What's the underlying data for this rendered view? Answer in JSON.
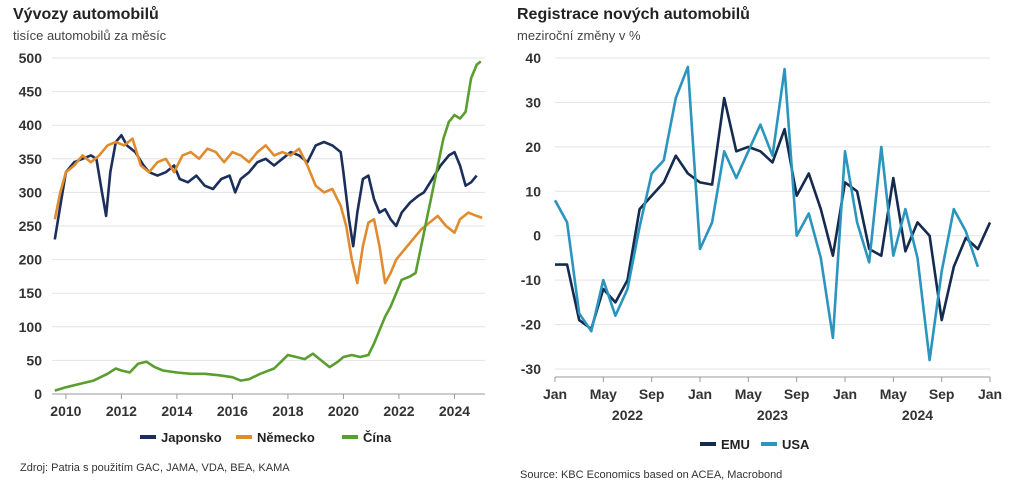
{
  "left": {
    "title": "Vývozy automobilů",
    "subtitle": "tisíce automobilů za měsíc",
    "source": "Zdroj: Patria s použitím GAC, JAMA, VDA, BEA, KAMA"
  },
  "right": {
    "title": "Registrace nových automobilů",
    "subtitle": "meziroční změny v %",
    "source": "Source: KBC Economics based on ACEA, Macrobond"
  },
  "colors": {
    "japonsko": "#1b2f5a",
    "nemecko": "#e08c2e",
    "cina": "#5a9e2f",
    "emu": "#142a4f",
    "usa": "#2b95bd",
    "grid": "#e3e3e3",
    "axis": "#9a9a9a"
  },
  "chart_data": [
    {
      "type": "line",
      "title": "Vývozy automobilů",
      "subtitle": "tisíce automobilů za měsíc",
      "ylim": [
        0,
        500
      ],
      "yticks": [
        0,
        50,
        100,
        150,
        200,
        250,
        300,
        350,
        400,
        450,
        500
      ],
      "xlim": [
        2009.5,
        2025.1
      ],
      "xticks": [
        2010,
        2012,
        2014,
        2016,
        2018,
        2020,
        2022,
        2024
      ],
      "grid": true,
      "legend": "bottom",
      "series": [
        {
          "name": "Japonsko",
          "color_key": "japonsko",
          "points": [
            [
              2009.6,
              230
            ],
            [
              2009.8,
              280
            ],
            [
              2010.0,
              330
            ],
            [
              2010.3,
              345
            ],
            [
              2010.6,
              350
            ],
            [
              2010.9,
              355
            ],
            [
              2011.1,
              350
            ],
            [
              2011.3,
              300
            ],
            [
              2011.45,
              265
            ],
            [
              2011.6,
              330
            ],
            [
              2011.8,
              375
            ],
            [
              2012.0,
              385
            ],
            [
              2012.2,
              370
            ],
            [
              2012.5,
              360
            ],
            [
              2012.8,
              340
            ],
            [
              2013.0,
              330
            ],
            [
              2013.3,
              325
            ],
            [
              2013.6,
              330
            ],
            [
              2013.9,
              340
            ],
            [
              2014.1,
              320
            ],
            [
              2014.4,
              315
            ],
            [
              2014.7,
              325
            ],
            [
              2015.0,
              310
            ],
            [
              2015.3,
              305
            ],
            [
              2015.6,
              320
            ],
            [
              2015.9,
              325
            ],
            [
              2016.1,
              300
            ],
            [
              2016.3,
              320
            ],
            [
              2016.6,
              330
            ],
            [
              2016.9,
              345
            ],
            [
              2017.2,
              350
            ],
            [
              2017.5,
              340
            ],
            [
              2017.8,
              350
            ],
            [
              2018.1,
              360
            ],
            [
              2018.4,
              355
            ],
            [
              2018.7,
              345
            ],
            [
              2019.0,
              370
            ],
            [
              2019.3,
              375
            ],
            [
              2019.6,
              370
            ],
            [
              2019.9,
              360
            ],
            [
              2020.0,
              330
            ],
            [
              2020.2,
              260
            ],
            [
              2020.35,
              220
            ],
            [
              2020.5,
              270
            ],
            [
              2020.7,
              320
            ],
            [
              2020.9,
              325
            ],
            [
              2021.1,
              290
            ],
            [
              2021.3,
              270
            ],
            [
              2021.5,
              275
            ],
            [
              2021.7,
              260
            ],
            [
              2021.9,
              250
            ],
            [
              2022.1,
              270
            ],
            [
              2022.4,
              285
            ],
            [
              2022.7,
              295
            ],
            [
              2022.9,
              300
            ],
            [
              2023.2,
              320
            ],
            [
              2023.5,
              340
            ],
            [
              2023.8,
              355
            ],
            [
              2024.0,
              360
            ],
            [
              2024.2,
              340
            ],
            [
              2024.4,
              310
            ],
            [
              2024.6,
              315
            ],
            [
              2024.8,
              325
            ]
          ]
        },
        {
          "name": "Německo",
          "color_key": "nemecko",
          "points": [
            [
              2009.6,
              260
            ],
            [
              2009.8,
              300
            ],
            [
              2010.0,
              330
            ],
            [
              2010.3,
              340
            ],
            [
              2010.6,
              355
            ],
            [
              2010.9,
              345
            ],
            [
              2011.2,
              355
            ],
            [
              2011.5,
              370
            ],
            [
              2011.8,
              375
            ],
            [
              2012.1,
              370
            ],
            [
              2012.4,
              380
            ],
            [
              2012.7,
              340
            ],
            [
              2013.0,
              330
            ],
            [
              2013.3,
              345
            ],
            [
              2013.6,
              350
            ],
            [
              2013.9,
              330
            ],
            [
              2014.2,
              355
            ],
            [
              2014.5,
              360
            ],
            [
              2014.8,
              350
            ],
            [
              2015.1,
              365
            ],
            [
              2015.4,
              360
            ],
            [
              2015.7,
              345
            ],
            [
              2016.0,
              360
            ],
            [
              2016.3,
              355
            ],
            [
              2016.6,
              345
            ],
            [
              2016.9,
              360
            ],
            [
              2017.2,
              370
            ],
            [
              2017.5,
              355
            ],
            [
              2017.8,
              360
            ],
            [
              2018.1,
              355
            ],
            [
              2018.4,
              365
            ],
            [
              2018.7,
              340
            ],
            [
              2019.0,
              310
            ],
            [
              2019.3,
              300
            ],
            [
              2019.6,
              305
            ],
            [
              2019.9,
              280
            ],
            [
              2020.1,
              250
            ],
            [
              2020.3,
              200
            ],
            [
              2020.5,
              165
            ],
            [
              2020.7,
              220
            ],
            [
              2020.9,
              255
            ],
            [
              2021.1,
              260
            ],
            [
              2021.3,
              220
            ],
            [
              2021.5,
              165
            ],
            [
              2021.7,
              180
            ],
            [
              2021.9,
              200
            ],
            [
              2022.2,
              215
            ],
            [
              2022.5,
              230
            ],
            [
              2022.8,
              245
            ],
            [
              2023.1,
              255
            ],
            [
              2023.4,
              265
            ],
            [
              2023.7,
              250
            ],
            [
              2024.0,
              240
            ],
            [
              2024.2,
              260
            ],
            [
              2024.5,
              270
            ],
            [
              2024.8,
              265
            ],
            [
              2025.0,
              262
            ]
          ]
        },
        {
          "name": "Čína",
          "color_key": "cina",
          "points": [
            [
              2009.6,
              5
            ],
            [
              2010.0,
              10
            ],
            [
              2010.5,
              15
            ],
            [
              2011.0,
              20
            ],
            [
              2011.5,
              30
            ],
            [
              2011.8,
              38
            ],
            [
              2012.0,
              35
            ],
            [
              2012.3,
              32
            ],
            [
              2012.6,
              45
            ],
            [
              2012.9,
              48
            ],
            [
              2013.2,
              40
            ],
            [
              2013.5,
              35
            ],
            [
              2014.0,
              32
            ],
            [
              2014.5,
              30
            ],
            [
              2015.0,
              30
            ],
            [
              2015.5,
              28
            ],
            [
              2016.0,
              25
            ],
            [
              2016.3,
              20
            ],
            [
              2016.6,
              22
            ],
            [
              2017.0,
              30
            ],
            [
              2017.5,
              38
            ],
            [
              2017.8,
              50
            ],
            [
              2018.0,
              58
            ],
            [
              2018.3,
              55
            ],
            [
              2018.6,
              52
            ],
            [
              2018.9,
              60
            ],
            [
              2019.2,
              50
            ],
            [
              2019.5,
              40
            ],
            [
              2019.8,
              48
            ],
            [
              2020.0,
              55
            ],
            [
              2020.3,
              58
            ],
            [
              2020.6,
              55
            ],
            [
              2020.9,
              58
            ],
            [
              2021.1,
              75
            ],
            [
              2021.3,
              95
            ],
            [
              2021.5,
              115
            ],
            [
              2021.7,
              130
            ],
            [
              2021.9,
              150
            ],
            [
              2022.1,
              170
            ],
            [
              2022.4,
              175
            ],
            [
              2022.6,
              180
            ],
            [
              2022.8,
              220
            ],
            [
              2023.0,
              260
            ],
            [
              2023.2,
              300
            ],
            [
              2023.4,
              340
            ],
            [
              2023.6,
              380
            ],
            [
              2023.8,
              405
            ],
            [
              2024.0,
              415
            ],
            [
              2024.2,
              410
            ],
            [
              2024.4,
              420
            ],
            [
              2024.6,
              470
            ],
            [
              2024.8,
              490
            ],
            [
              2024.95,
              495
            ]
          ]
        }
      ]
    },
    {
      "type": "line",
      "title": "Registrace nových automobilů",
      "subtitle": "meziroční změny v %",
      "ylim": [
        -30,
        40
      ],
      "yticks": [
        -30,
        -20,
        -10,
        0,
        10,
        20,
        30,
        40
      ],
      "x_start": "2022-01",
      "months": 37,
      "xtick_labels": [
        "Jan",
        "May",
        "Sep",
        "Jan",
        "May",
        "Sep",
        "Jan",
        "May",
        "Sep",
        "Jan"
      ],
      "xtick_month_index": [
        0,
        4,
        8,
        12,
        16,
        20,
        24,
        28,
        32,
        36
      ],
      "year_labels": [
        {
          "label": "2022",
          "center_index": 6
        },
        {
          "label": "2023",
          "center_index": 18
        },
        {
          "label": "2024",
          "center_index": 30
        }
      ],
      "grid": true,
      "legend": "bottom",
      "series": [
        {
          "name": "EMU",
          "color_key": "emu",
          "values": [
            -6.5,
            -6.5,
            -19,
            -21,
            -12,
            -15,
            -10,
            6,
            9,
            12,
            18,
            14,
            12,
            11.5,
            31,
            19,
            20,
            19,
            16.5,
            24,
            9,
            14,
            6,
            -4.5,
            12,
            10,
            -3,
            -4.5,
            13,
            -3.5,
            3,
            0,
            -19,
            -7,
            -0.5,
            -3,
            3
          ]
        },
        {
          "name": "USA",
          "color_key": "usa",
          "values": [
            8,
            3,
            -17.5,
            -21.5,
            -10,
            -18,
            -12,
            2,
            14,
            17,
            31,
            38,
            -3,
            3,
            19,
            13,
            19,
            25,
            18,
            37.5,
            0,
            5,
            -5,
            -23,
            19,
            3,
            -6,
            20,
            -4.5,
            6,
            -5,
            -28,
            -8,
            6,
            1,
            -7
          ]
        }
      ]
    }
  ]
}
